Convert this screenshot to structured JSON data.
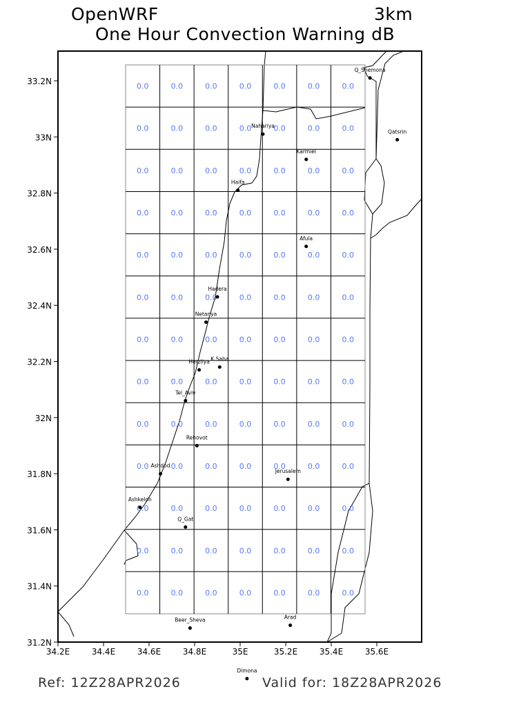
{
  "title": {
    "left": "OpenWRF",
    "right": "3km",
    "subtitle": "One Hour Convection Warning dB"
  },
  "map": {
    "lon_range": [
      34.2,
      35.8
    ],
    "lat_range": [
      31.2,
      33.3
    ],
    "x_ticks": [
      "34.2E",
      "34.4E",
      "34.6E",
      "34.8E",
      "35E",
      "35.2E",
      "35.4E",
      "35.6E"
    ],
    "y_ticks": [
      "31.2N",
      "31.4N",
      "31.6N",
      "31.8N",
      "32N",
      "32.2N",
      "32.4N",
      "32.6N",
      "32.8N",
      "33N",
      "33.2N"
    ],
    "value_color": "#5a78f0",
    "grid_values": [
      [
        "0.0",
        "0.0",
        "0.0",
        "0.0",
        "0.0",
        "0.0",
        "0.0"
      ],
      [
        "0.0",
        "0.0",
        "0.0",
        "0.0",
        "0.0",
        "0.0",
        "0.0"
      ],
      [
        "0.0",
        "0.0",
        "0.0",
        "0.0",
        "0.0",
        "0.0",
        "0.0"
      ],
      [
        "0.0",
        "0.0",
        "0.0",
        "0.0",
        "0.0",
        "0.0",
        "0.0"
      ],
      [
        "0.0",
        "0.0",
        "0.0",
        "0.0",
        "0.0",
        "0.0",
        "0.0"
      ],
      [
        "0.0",
        "0.0",
        "0.0",
        "0.0",
        "0.0",
        "0.0",
        "0.0"
      ],
      [
        "0.0",
        "0.0",
        "0.0",
        "0.0",
        "0.0",
        "0.0",
        "0.0"
      ],
      [
        "0.0",
        "0.0",
        "0.0",
        "0.0",
        "0.0",
        "0.0",
        "0.0"
      ],
      [
        "0.0",
        "0.0",
        "0.0",
        "0.0",
        "0.0",
        "0.0",
        "0.0"
      ],
      [
        "0.0",
        "0.0",
        "0.0",
        "0.0",
        "0.0",
        "0.0",
        "0.0"
      ],
      [
        "0.0",
        "0.0",
        "0.0",
        "0.0",
        "0.0",
        "0.0",
        "0.0"
      ],
      [
        "0.0",
        "0.0",
        "0.0",
        "0.0",
        "0.0",
        "0.0",
        "0.0"
      ],
      [
        "0.0",
        "0.0",
        "0.0",
        "0.0",
        "0.0",
        "0.0",
        "0.0"
      ]
    ],
    "cities": [
      {
        "name": "Q_Shemona",
        "lon": 35.57,
        "lat": 33.21
      },
      {
        "name": "Qatsrin",
        "lon": 35.69,
        "lat": 32.99
      },
      {
        "name": "Nahariya",
        "lon": 35.1,
        "lat": 33.01
      },
      {
        "name": "Karmiel",
        "lon": 35.29,
        "lat": 32.92
      },
      {
        "name": "Haifa",
        "lon": 34.99,
        "lat": 32.81
      },
      {
        "name": "Afula",
        "lon": 35.29,
        "lat": 32.61
      },
      {
        "name": "Hadera",
        "lon": 34.9,
        "lat": 32.43
      },
      {
        "name": "Netanya",
        "lon": 34.85,
        "lat": 32.34
      },
      {
        "name": "Herzliya",
        "lon": 34.82,
        "lat": 32.17
      },
      {
        "name": "K.Saba",
        "lon": 34.91,
        "lat": 32.18
      },
      {
        "name": "Tel_Aviv",
        "lon": 34.76,
        "lat": 32.06
      },
      {
        "name": "Rehovot",
        "lon": 34.81,
        "lat": 31.9
      },
      {
        "name": "Ashdod",
        "lon": 34.65,
        "lat": 31.8
      },
      {
        "name": "Jerusalem",
        "lon": 35.21,
        "lat": 31.78
      },
      {
        "name": "Ashkelon",
        "lon": 34.56,
        "lat": 31.68
      },
      {
        "name": "Q_Gat",
        "lon": 34.76,
        "lat": 31.61
      },
      {
        "name": "Beer_Sheva",
        "lon": 34.78,
        "lat": 31.25
      },
      {
        "name": "Arad",
        "lon": 35.22,
        "lat": 31.26
      },
      {
        "name": "Dimona",
        "lon": 35.03,
        "lat": 31.07
      }
    ]
  },
  "footer": {
    "ref": "Ref: 12Z28APR2026",
    "valid": "Valid for: 18Z28APR2026"
  }
}
